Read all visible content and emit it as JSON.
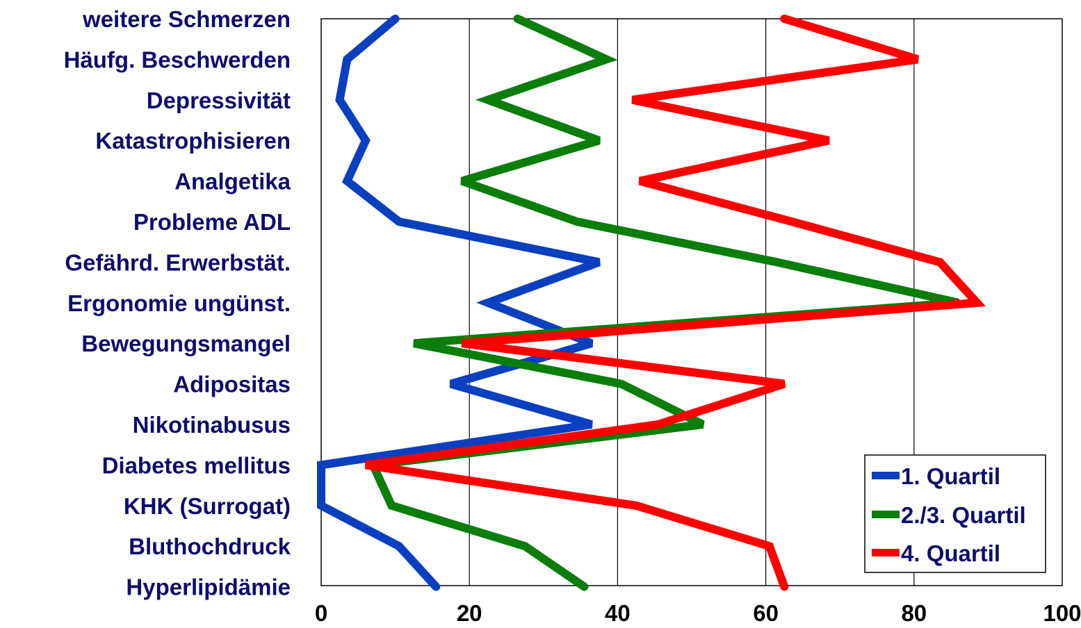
{
  "chart_data": {
    "type": "line",
    "orientation": "horizontal",
    "categories": [
      "weitere Schmerzen",
      "Häufg. Beschwerden",
      "Depressivität",
      "Katastrophisieren",
      "Analgetika",
      "Probleme ADL",
      "Gefährd. Erwerbstät.",
      "Ergonomie ungünst.",
      "Bewegungsmangel",
      "Adipositas",
      "Nikotinabusus",
      "Diabetes mellitus",
      "KHK (Surrogat)",
      "Bluthochdruck",
      "Hyperlipidämie"
    ],
    "series": [
      {
        "name": "1. Quartil",
        "color": "#0a3fbf",
        "values": [
          10,
          3.5,
          2.5,
          6,
          3.5,
          10.5,
          37.5,
          22.5,
          36.5,
          17.5,
          36.5,
          0,
          0,
          10.5,
          15.5
        ]
      },
      {
        "name": "2./3. Quartil",
        "color": "#0b7d0b",
        "values": [
          26.5,
          38.5,
          22.5,
          37.5,
          19,
          34.5,
          61.5,
          86,
          12.5,
          40.5,
          51.5,
          7,
          9.5,
          27.5,
          35.5
        ]
      },
      {
        "name": "4. Quartil",
        "color": "#ff0000",
        "values": [
          62.5,
          80.5,
          42,
          68.5,
          43,
          63.5,
          83.5,
          88.5,
          19,
          62.5,
          45.5,
          6,
          42.5,
          60.5,
          62.5
        ]
      }
    ],
    "x_ticks": [
      "0",
      "20",
      "40",
      "60",
      "80",
      "100"
    ],
    "xlim": [
      0,
      100
    ],
    "grid": "vertical",
    "legend": "bottom-right"
  }
}
